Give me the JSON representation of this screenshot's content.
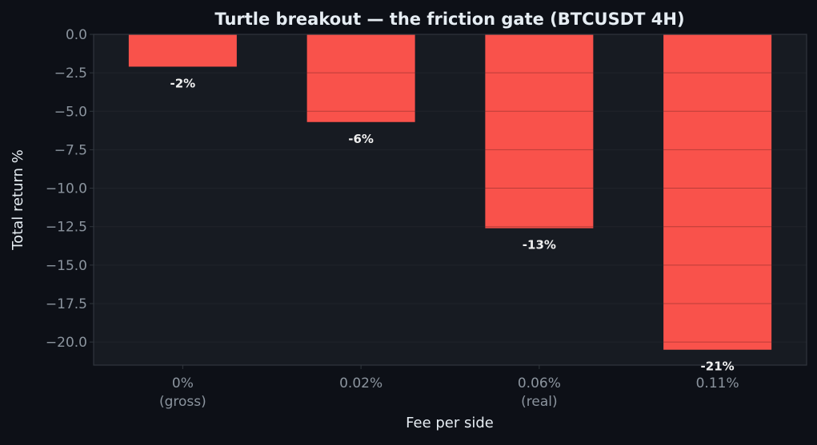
{
  "colors": {
    "page_background": "#0d1017",
    "plot_background": "#171b22",
    "bar": "#f9524b",
    "grid": "#2a2f38",
    "spine": "#30363d",
    "title": "#e6edf3",
    "axis_label": "#e6edf3",
    "tick_label": "#8b949e",
    "data_label": "#f0f0f0"
  },
  "chart_data": {
    "type": "bar",
    "title": "Turtle breakout — the friction gate (BTCUSDT 4H)",
    "xlabel": "Fee per side",
    "ylabel": "Total return %",
    "categories": [
      [
        "0%",
        "(gross)"
      ],
      [
        "0.02%"
      ],
      [
        "0.06%",
        "(real)"
      ],
      [
        "0.11%"
      ]
    ],
    "values": [
      -2.1,
      -5.7,
      -12.6,
      -20.5
    ],
    "data_labels": [
      "-2%",
      "-6%",
      "-13%",
      "-21%"
    ],
    "ylim": [
      -21.5,
      0
    ],
    "yticks": [
      0.0,
      -2.5,
      -5.0,
      -7.5,
      -10.0,
      -12.5,
      -15.0,
      -17.5,
      -20.0
    ],
    "ytick_labels": [
      "0.0",
      "−2.5",
      "−5.0",
      "−7.5",
      "−10.0",
      "−12.5",
      "−15.0",
      "−17.5",
      "−20.0"
    ],
    "grid": true,
    "legend": "none"
  }
}
